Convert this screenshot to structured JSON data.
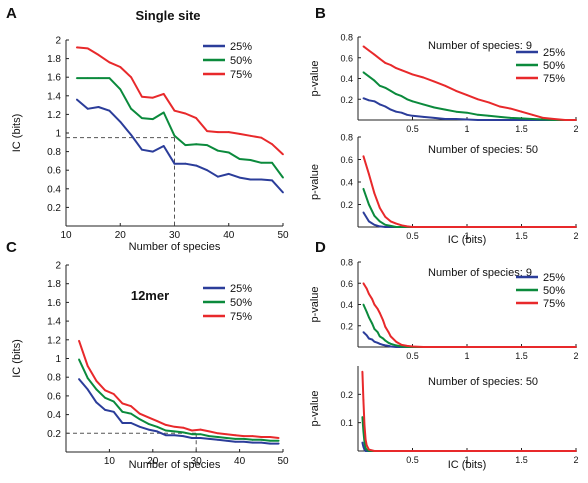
{
  "colors": {
    "p25": "#2b3d9a",
    "p50": "#0b8a3c",
    "p75": "#e8292b",
    "axis": "#222222",
    "guide": "#555555"
  },
  "chart_data": [
    {
      "panel": "A",
      "type": "line",
      "title": "Single site",
      "xlabel": "Number of species",
      "ylabel": "IC (bits)",
      "xlim": [
        10,
        50
      ],
      "ylim": [
        0,
        2
      ],
      "xticks": [
        10,
        20,
        30,
        40,
        50
      ],
      "yticks": [
        0.2,
        0.4,
        0.6,
        0.8,
        1,
        1.2,
        1.4,
        1.6,
        1.8,
        2
      ],
      "legend_position": "top-right",
      "guide": {
        "x": 30,
        "y": 0.95
      },
      "x": [
        12,
        14,
        16,
        18,
        20,
        22,
        24,
        26,
        28,
        30,
        32,
        34,
        36,
        38,
        40,
        42,
        44,
        46,
        48,
        50
      ],
      "series": [
        {
          "name": "25%",
          "color_key": "p25",
          "values": [
            1.36,
            1.26,
            1.28,
            1.24,
            1.12,
            0.98,
            0.82,
            0.8,
            0.86,
            0.67,
            0.67,
            0.65,
            0.6,
            0.53,
            0.56,
            0.52,
            0.5,
            0.5,
            0.49,
            0.36
          ]
        },
        {
          "name": "50%",
          "color_key": "p50",
          "values": [
            1.59,
            1.59,
            1.59,
            1.59,
            1.47,
            1.26,
            1.16,
            1.15,
            1.22,
            0.97,
            0.87,
            0.88,
            0.87,
            0.81,
            0.79,
            0.72,
            0.71,
            0.68,
            0.68,
            0.52
          ]
        },
        {
          "name": "75%",
          "color_key": "p75",
          "values": [
            1.92,
            1.91,
            1.84,
            1.76,
            1.71,
            1.6,
            1.39,
            1.38,
            1.42,
            1.24,
            1.21,
            1.16,
            1.02,
            1.01,
            1.01,
            0.99,
            0.97,
            0.95,
            0.88,
            0.77
          ]
        }
      ]
    },
    {
      "panel": "B",
      "type": "line",
      "annotation": "Number of species: 9",
      "ylabel": "p-value",
      "xlim": [
        0,
        2
      ],
      "ylim": [
        0,
        0.8
      ],
      "xticks": [
        0.5,
        1,
        1.5,
        2
      ],
      "yticks": [
        0.2,
        0.4,
        0.6,
        0.8
      ],
      "legend_position": "top-right",
      "x": [
        0.05,
        0.1,
        0.15,
        0.2,
        0.25,
        0.3,
        0.35,
        0.4,
        0.45,
        0.5,
        0.6,
        0.7,
        0.8,
        0.9,
        1.0,
        1.1,
        1.2,
        1.3,
        1.4,
        1.5,
        1.6,
        1.7,
        1.8,
        1.9,
        2.0
      ],
      "series": [
        {
          "name": "25%",
          "color_key": "p25",
          "values": [
            0.21,
            0.19,
            0.18,
            0.15,
            0.13,
            0.1,
            0.08,
            0.07,
            0.05,
            0.04,
            0.03,
            0.02,
            0.01,
            0.01,
            0.005,
            0,
            0,
            0,
            0,
            0,
            0,
            0,
            0,
            0,
            0
          ]
        },
        {
          "name": "50%",
          "color_key": "p50",
          "values": [
            0.46,
            0.42,
            0.38,
            0.33,
            0.31,
            0.28,
            0.25,
            0.23,
            0.2,
            0.18,
            0.15,
            0.12,
            0.1,
            0.08,
            0.07,
            0.05,
            0.04,
            0.03,
            0.02,
            0.015,
            0.01,
            0.005,
            0,
            0,
            0
          ]
        },
        {
          "name": "75%",
          "color_key": "p75",
          "values": [
            0.71,
            0.67,
            0.63,
            0.59,
            0.55,
            0.53,
            0.5,
            0.48,
            0.46,
            0.44,
            0.41,
            0.37,
            0.33,
            0.28,
            0.24,
            0.2,
            0.17,
            0.13,
            0.11,
            0.08,
            0.05,
            0.02,
            0.01,
            0,
            0
          ]
        }
      ]
    },
    {
      "panel": "B",
      "type": "line",
      "annotation": "Number of species: 50",
      "xlabel": "IC (bits)",
      "ylabel": "p-value",
      "xlim": [
        0,
        2
      ],
      "ylim": [
        0,
        0.8
      ],
      "xticks": [
        0.5,
        1,
        1.5,
        2
      ],
      "yticks": [
        0.2,
        0.4,
        0.6,
        0.8
      ],
      "x": [
        0.05,
        0.1,
        0.15,
        0.2,
        0.25,
        0.3,
        0.35,
        0.4,
        0.45,
        0.5,
        0.6,
        1.0,
        1.5,
        2.0
      ],
      "series": [
        {
          "name": "25%",
          "color_key": "p25",
          "values": [
            0.13,
            0.05,
            0.02,
            0.005,
            0,
            0,
            0,
            0,
            0,
            0,
            0,
            0,
            0,
            0
          ]
        },
        {
          "name": "50%",
          "color_key": "p50",
          "values": [
            0.34,
            0.2,
            0.1,
            0.05,
            0.02,
            0.01,
            0,
            0,
            0,
            0,
            0,
            0,
            0,
            0
          ]
        },
        {
          "name": "75%",
          "color_key": "p75",
          "values": [
            0.63,
            0.47,
            0.3,
            0.17,
            0.09,
            0.05,
            0.03,
            0.015,
            0.005,
            0,
            0,
            0,
            0,
            0
          ]
        }
      ]
    },
    {
      "panel": "C",
      "type": "line",
      "title": "12mer",
      "xlabel": "Number of species",
      "ylabel": "IC (bits)",
      "xlim": [
        0,
        50
      ],
      "ylim": [
        0,
        2
      ],
      "xticks": [
        10,
        20,
        30,
        40,
        50
      ],
      "yticks": [
        0.2,
        0.4,
        0.6,
        0.8,
        1,
        1.2,
        1.4,
        1.6,
        1.8,
        2
      ],
      "legend_position": "top-right",
      "guide": {
        "x": 30,
        "y": 0.2
      },
      "x": [
        3,
        5,
        7,
        9,
        11,
        13,
        15,
        17,
        19,
        21,
        23,
        25,
        27,
        29,
        31,
        33,
        35,
        37,
        39,
        41,
        43,
        45,
        47,
        49
      ],
      "series": [
        {
          "name": "25%",
          "color_key": "p25",
          "values": [
            0.78,
            0.67,
            0.53,
            0.45,
            0.43,
            0.31,
            0.31,
            0.27,
            0.24,
            0.22,
            0.18,
            0.18,
            0.17,
            0.15,
            0.15,
            0.14,
            0.13,
            0.12,
            0.11,
            0.11,
            0.1,
            0.1,
            0.09,
            0.09
          ]
        },
        {
          "name": "50%",
          "color_key": "p50",
          "values": [
            0.99,
            0.79,
            0.67,
            0.58,
            0.54,
            0.43,
            0.41,
            0.35,
            0.3,
            0.27,
            0.23,
            0.22,
            0.21,
            0.19,
            0.19,
            0.17,
            0.16,
            0.15,
            0.14,
            0.14,
            0.13,
            0.13,
            0.12,
            0.12
          ]
        },
        {
          "name": "75%",
          "color_key": "p75",
          "values": [
            1.19,
            0.92,
            0.76,
            0.66,
            0.62,
            0.52,
            0.49,
            0.41,
            0.37,
            0.33,
            0.29,
            0.27,
            0.26,
            0.23,
            0.24,
            0.22,
            0.2,
            0.19,
            0.18,
            0.17,
            0.17,
            0.16,
            0.16,
            0.15
          ]
        }
      ]
    },
    {
      "panel": "D",
      "type": "line",
      "annotation": "Number of species: 9",
      "ylabel": "p-value",
      "xlim": [
        0,
        2
      ],
      "ylim": [
        0,
        0.8
      ],
      "xticks": [
        0.5,
        1,
        1.5,
        2
      ],
      "yticks": [
        0.2,
        0.4,
        0.6,
        0.8
      ],
      "legend_position": "top-right",
      "x": [
        0.05,
        0.08,
        0.1,
        0.13,
        0.15,
        0.18,
        0.2,
        0.23,
        0.25,
        0.28,
        0.3,
        0.35,
        0.4,
        0.45,
        0.5,
        0.6,
        1.0,
        1.5,
        2.0
      ],
      "series": [
        {
          "name": "25%",
          "color_key": "p25",
          "values": [
            0.14,
            0.11,
            0.08,
            0.07,
            0.05,
            0.04,
            0.03,
            0.02,
            0.015,
            0.01,
            0.005,
            0,
            0,
            0,
            0,
            0,
            0,
            0,
            0
          ]
        },
        {
          "name": "50%",
          "color_key": "p50",
          "values": [
            0.4,
            0.33,
            0.28,
            0.22,
            0.17,
            0.14,
            0.1,
            0.08,
            0.06,
            0.04,
            0.03,
            0.015,
            0.005,
            0,
            0,
            0,
            0,
            0,
            0
          ]
        },
        {
          "name": "75%",
          "color_key": "p75",
          "values": [
            0.6,
            0.55,
            0.5,
            0.45,
            0.4,
            0.36,
            0.32,
            0.25,
            0.19,
            0.14,
            0.1,
            0.05,
            0.02,
            0.01,
            0.005,
            0,
            0,
            0,
            0
          ]
        }
      ]
    },
    {
      "panel": "D",
      "type": "line",
      "annotation": "Number of species: 50",
      "xlabel": "IC (bits)",
      "ylabel": "p-value",
      "xlim": [
        0,
        2
      ],
      "ylim": [
        0,
        0.3
      ],
      "xticks": [
        0.5,
        1,
        1.5,
        2
      ],
      "yticks": [
        0.1,
        0.2
      ],
      "x": [
        0.04,
        0.05,
        0.06,
        0.07,
        0.08,
        0.1,
        0.15,
        0.5,
        1.0,
        2.0
      ],
      "series": [
        {
          "name": "25%",
          "color_key": "p25",
          "values": [
            0.03,
            0.015,
            0.005,
            0,
            0,
            0,
            0,
            0,
            0,
            0
          ]
        },
        {
          "name": "50%",
          "color_key": "p50",
          "values": [
            0.12,
            0.07,
            0.03,
            0.01,
            0.005,
            0,
            0,
            0,
            0,
            0
          ]
        },
        {
          "name": "75%",
          "color_key": "p75",
          "values": [
            0.28,
            0.18,
            0.09,
            0.04,
            0.02,
            0.005,
            0,
            0,
            0,
            0
          ]
        }
      ]
    }
  ]
}
